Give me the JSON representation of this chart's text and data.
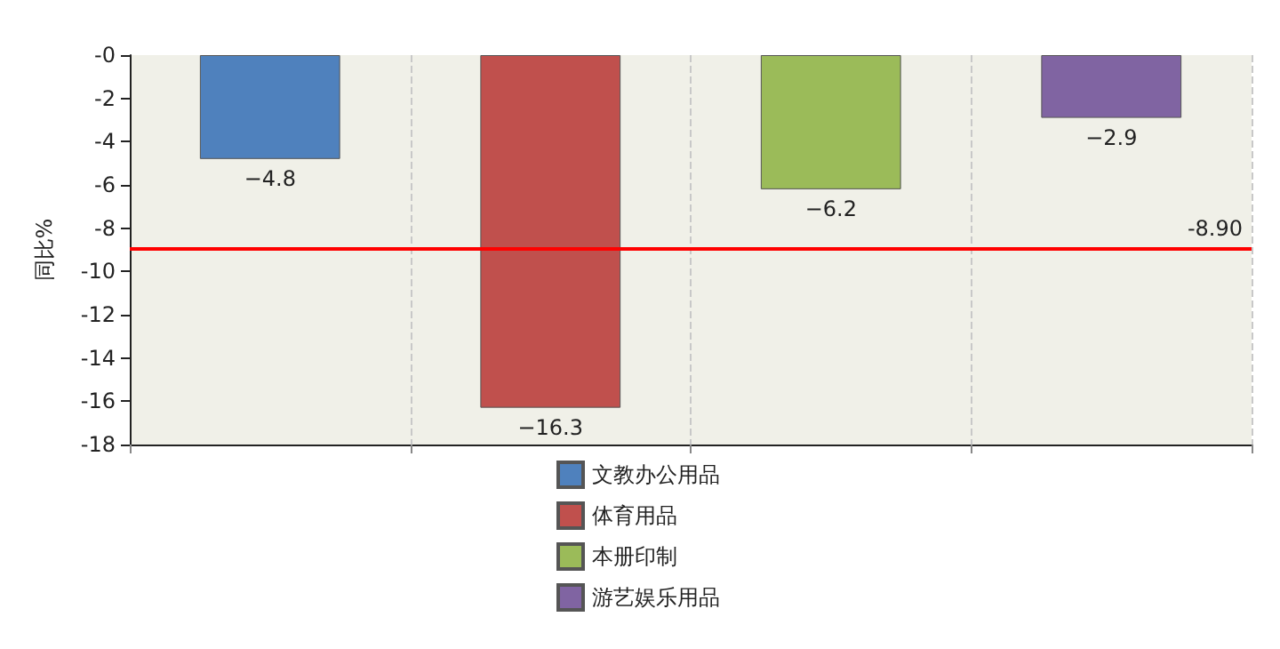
{
  "chart_data": {
    "type": "bar",
    "ylabel": "同比%",
    "categories": [
      null,
      null,
      null,
      null
    ],
    "series": [
      {
        "name": "文教办公用品",
        "color": "#4f81bd",
        "values": [
          -4.8,
          null,
          null,
          null
        ]
      },
      {
        "name": "体育用品",
        "color": "#c0504d",
        "values": [
          null,
          -16.3,
          null,
          null
        ]
      },
      {
        "name": "本册印制",
        "color": "#9bbb59",
        "values": [
          null,
          null,
          -6.2,
          null
        ]
      },
      {
        "name": "游艺娱乐用品",
        "color": "#8064a2",
        "values": [
          null,
          null,
          null,
          -2.9
        ]
      }
    ],
    "ylim": [
      -18,
      0
    ],
    "yticks": [
      {
        "value": 0,
        "label": "-0"
      },
      -2,
      -4,
      -6,
      -8,
      -10,
      -12,
      -14,
      -16,
      -18
    ],
    "ref_lines": [
      {
        "axis": "y",
        "value": -8.9,
        "label": "-8.90",
        "color": "#ff0000"
      }
    ],
    "data_labels": true,
    "grid": "x",
    "legend": "bottom"
  }
}
